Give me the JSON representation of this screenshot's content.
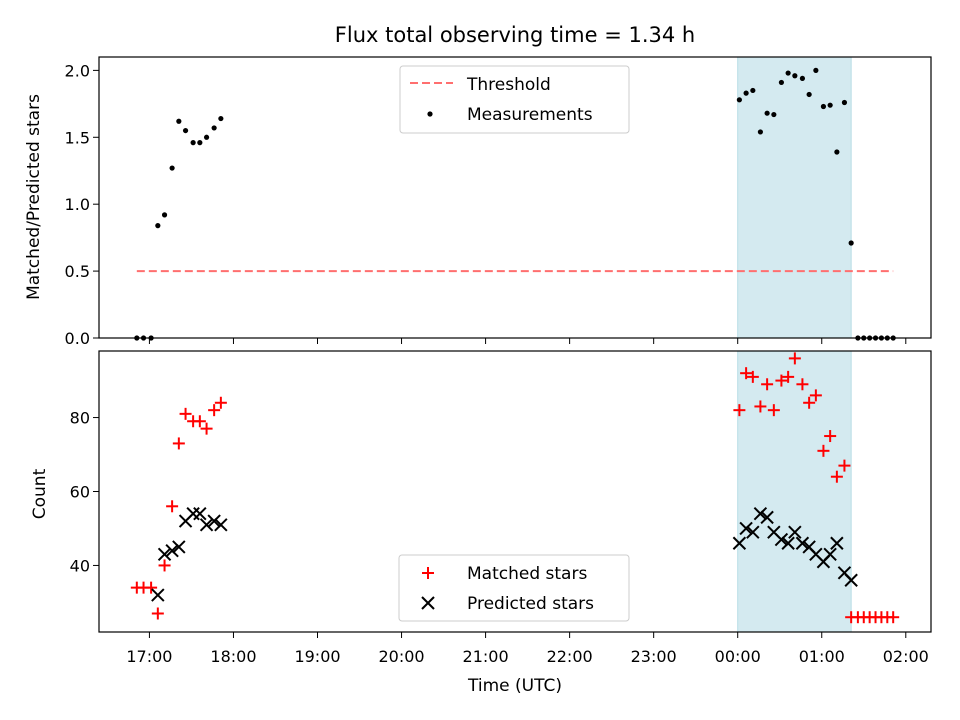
{
  "chart_data": {
    "title": "Flux total observing time = 1.34 h",
    "xlabel": "Time (UTC)",
    "x_unit": "hours (UTC clock, values > 24 are after midnight)",
    "xlim": [
      16.4,
      26.3
    ],
    "x_ticks": [
      17,
      18,
      19,
      20,
      21,
      22,
      23,
      24,
      25,
      26
    ],
    "x_tick_labels": [
      "17:00",
      "18:00",
      "19:00",
      "20:00",
      "21:00",
      "22:00",
      "23:00",
      "00:00",
      "01:00",
      "02:00"
    ],
    "highlight_span": {
      "from": 24.0,
      "to": 25.35,
      "color": "#d4eaf0"
    },
    "panels": [
      {
        "type": "scatter",
        "ylabel": "Matched/Predicted stars",
        "ylim": [
          0,
          2.1
        ],
        "y_ticks": [
          0.0,
          0.5,
          1.0,
          1.5,
          2.0
        ],
        "y_tick_labels": [
          "0.0",
          "0.5",
          "1.0",
          "1.5",
          "2.0"
        ],
        "legend_position": "top-center",
        "threshold": {
          "name": "Threshold",
          "y": 0.5,
          "x_from": 16.85,
          "x_to": 25.85,
          "color": "#ff6f6f"
        },
        "series": [
          {
            "name": "Measurements",
            "marker": "dot",
            "color": "#000000",
            "points": [
              [
                16.85,
                0.0
              ],
              [
                16.93,
                0.0
              ],
              [
                17.02,
                0.0
              ],
              [
                17.1,
                0.84
              ],
              [
                17.18,
                0.92
              ],
              [
                17.27,
                1.27
              ],
              [
                17.35,
                1.62
              ],
              [
                17.43,
                1.55
              ],
              [
                17.52,
                1.46
              ],
              [
                17.6,
                1.46
              ],
              [
                17.68,
                1.5
              ],
              [
                17.77,
                1.57
              ],
              [
                17.85,
                1.64
              ],
              [
                24.02,
                1.78
              ],
              [
                24.1,
                1.83
              ],
              [
                24.18,
                1.85
              ],
              [
                24.27,
                1.54
              ],
              [
                24.35,
                1.68
              ],
              [
                24.43,
                1.67
              ],
              [
                24.52,
                1.91
              ],
              [
                24.6,
                1.98
              ],
              [
                24.68,
                1.96
              ],
              [
                24.77,
                1.94
              ],
              [
                24.85,
                1.82
              ],
              [
                24.93,
                2.0
              ],
              [
                25.02,
                1.73
              ],
              [
                25.1,
                1.74
              ],
              [
                25.18,
                1.39
              ],
              [
                25.27,
                1.76
              ],
              [
                25.35,
                0.71
              ],
              [
                25.43,
                0.0
              ],
              [
                25.5,
                0.0
              ],
              [
                25.57,
                0.0
              ],
              [
                25.64,
                0.0
              ],
              [
                25.71,
                0.0
              ],
              [
                25.78,
                0.0
              ],
              [
                25.85,
                0.0
              ]
            ]
          }
        ]
      },
      {
        "type": "scatter",
        "ylabel": "Count",
        "ylim": [
          22,
          98
        ],
        "y_ticks": [
          40,
          60,
          80
        ],
        "y_tick_labels": [
          "40",
          "60",
          "80"
        ],
        "legend_position": "bottom-center",
        "series": [
          {
            "name": "Matched stars",
            "marker": "plus",
            "color": "#ff0000",
            "points": [
              [
                16.85,
                34
              ],
              [
                16.93,
                34
              ],
              [
                17.02,
                34
              ],
              [
                17.1,
                27
              ],
              [
                17.18,
                40
              ],
              [
                17.27,
                56
              ],
              [
                17.35,
                73
              ],
              [
                17.43,
                81
              ],
              [
                17.52,
                79
              ],
              [
                17.6,
                79
              ],
              [
                17.68,
                77
              ],
              [
                17.77,
                82
              ],
              [
                17.85,
                84
              ],
              [
                24.02,
                82
              ],
              [
                24.1,
                92
              ],
              [
                24.18,
                91
              ],
              [
                24.27,
                83
              ],
              [
                24.35,
                89
              ],
              [
                24.43,
                82
              ],
              [
                24.52,
                90
              ],
              [
                24.6,
                91
              ],
              [
                24.68,
                96
              ],
              [
                24.77,
                89
              ],
              [
                24.85,
                84
              ],
              [
                24.93,
                86
              ],
              [
                25.02,
                71
              ],
              [
                25.1,
                75
              ],
              [
                25.18,
                64
              ],
              [
                25.27,
                67
              ],
              [
                25.35,
                26
              ],
              [
                25.43,
                26
              ],
              [
                25.5,
                26
              ],
              [
                25.57,
                26
              ],
              [
                25.64,
                26
              ],
              [
                25.71,
                26
              ],
              [
                25.78,
                26
              ],
              [
                25.85,
                26
              ]
            ]
          },
          {
            "name": "Predicted stars",
            "marker": "x",
            "color": "#000000",
            "points": [
              [
                17.1,
                32
              ],
              [
                17.18,
                43
              ],
              [
                17.27,
                44
              ],
              [
                17.35,
                45
              ],
              [
                17.43,
                52
              ],
              [
                17.52,
                54
              ],
              [
                17.6,
                54
              ],
              [
                17.68,
                51
              ],
              [
                17.77,
                52
              ],
              [
                17.85,
                51
              ],
              [
                24.02,
                46
              ],
              [
                24.1,
                50
              ],
              [
                24.18,
                49
              ],
              [
                24.27,
                54
              ],
              [
                24.35,
                53
              ],
              [
                24.43,
                49
              ],
              [
                24.52,
                47
              ],
              [
                24.6,
                46
              ],
              [
                24.68,
                49
              ],
              [
                24.77,
                46
              ],
              [
                24.85,
                45
              ],
              [
                24.93,
                43
              ],
              [
                25.02,
                41
              ],
              [
                25.1,
                43
              ],
              [
                25.18,
                46
              ],
              [
                25.27,
                38
              ],
              [
                25.35,
                36
              ]
            ]
          }
        ]
      }
    ]
  }
}
